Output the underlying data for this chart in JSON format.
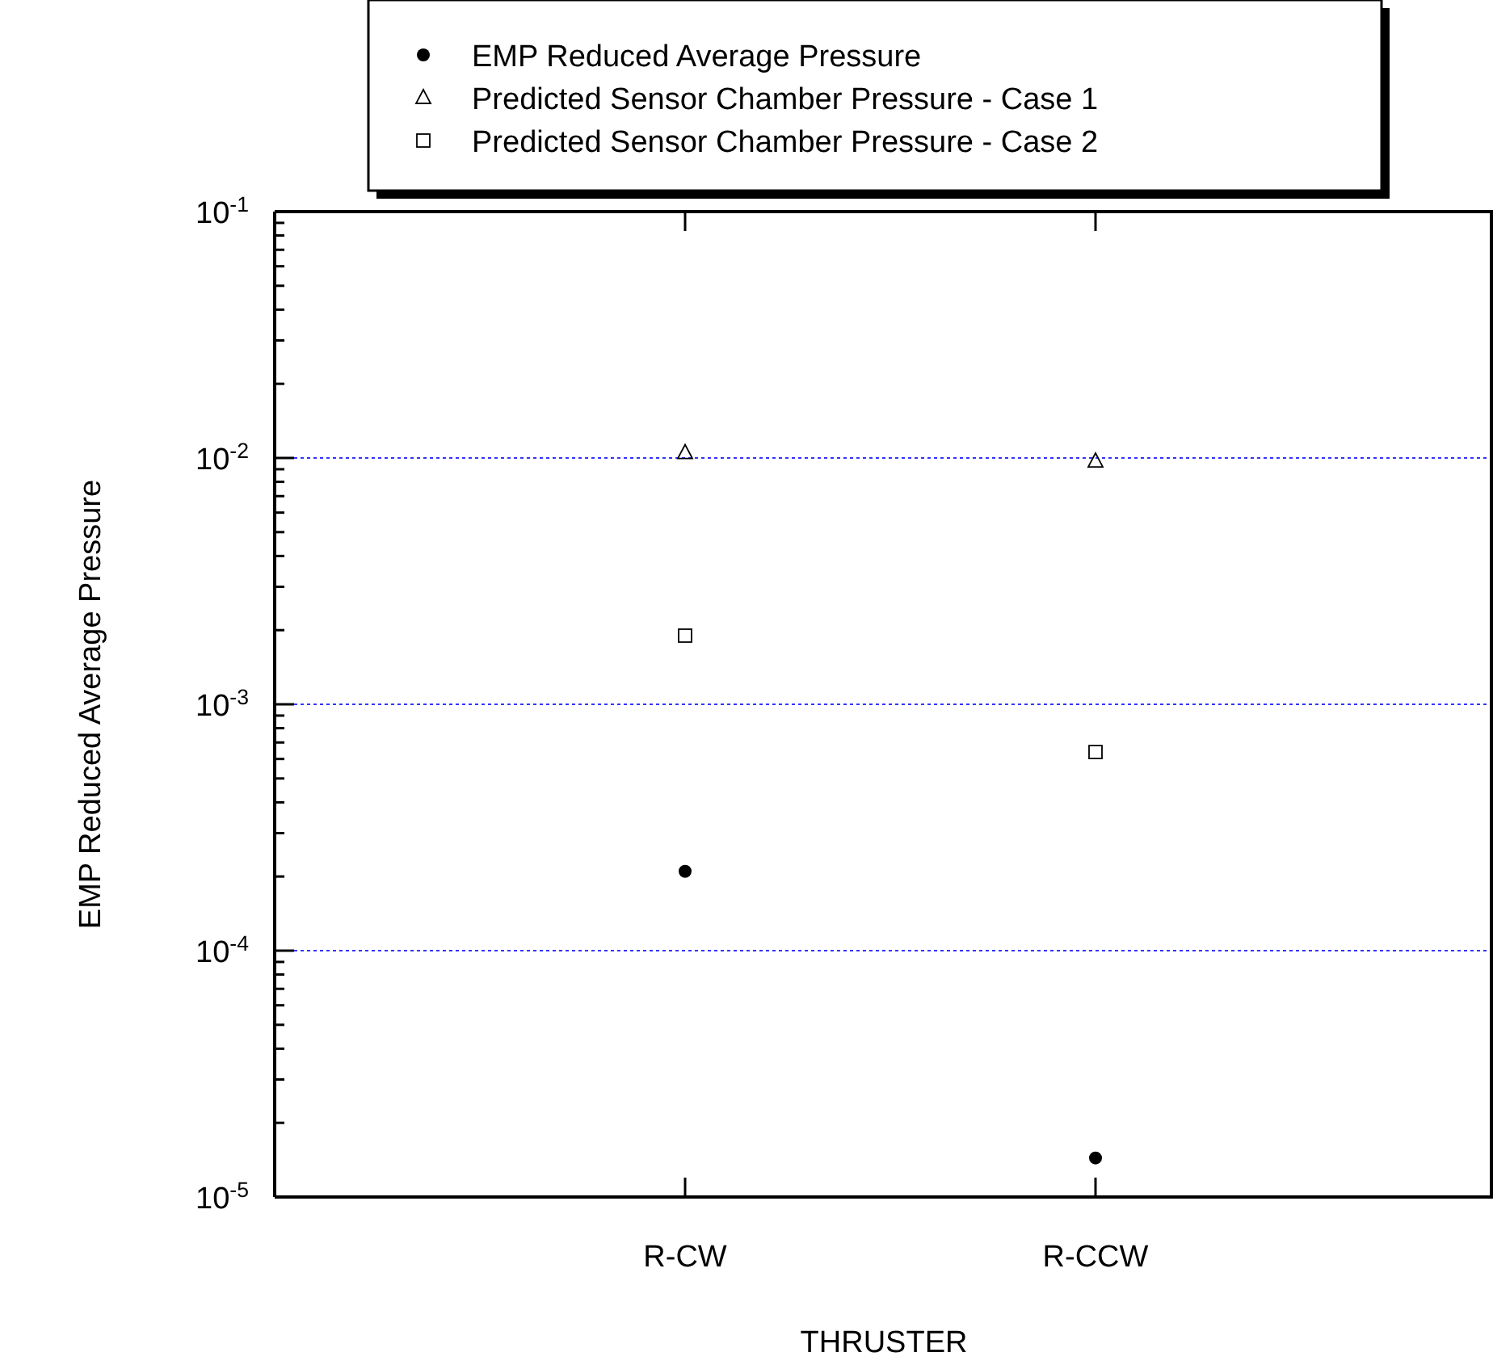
{
  "chart_data": {
    "type": "scatter",
    "xlabel": "THRUSTER",
    "ylabel": "EMP Reduced Average Pressure",
    "categories": [
      "R-CW",
      "R-CCW"
    ],
    "series": [
      {
        "name": "EMP Reduced Average Pressure",
        "color": "#000000",
        "marker": "circle",
        "values": [
          0.00021,
          1.44e-05
        ]
      },
      {
        "name": "Predicted Sensor Chamber Pressure - Case 1",
        "color": "#000000",
        "marker": "triangle",
        "values": [
          0.0105,
          0.0097
        ]
      },
      {
        "name": "Predicted Sensor Chamber Pressure  - Case 2",
        "color": "#000000",
        "marker": "square",
        "values": [
          0.0019,
          0.00064
        ]
      }
    ],
    "log": true,
    "ylim": [
      1e-05,
      0.1
    ],
    "yticks": [
      {
        "value": 1e-05,
        "label": "10$^{-5}$"
      },
      {
        "value": 2e-05,
        "label": null
      },
      {
        "value": 3e-05,
        "label": null
      },
      {
        "value": 4e-05,
        "label": null
      },
      {
        "value": 5e-05,
        "label": null
      },
      {
        "value": 6e-05,
        "label": null
      },
      {
        "value": 7e-05,
        "label": null
      },
      {
        "value": 8e-05,
        "label": null
      },
      {
        "value": 9e-05,
        "label": null
      },
      {
        "value": 0.0001,
        "label": "10$^{-4}$"
      },
      {
        "value": 0.0002,
        "label": null
      },
      {
        "value": 0.0003,
        "label": null
      },
      {
        "value": 0.0004,
        "label": null
      },
      {
        "value": 0.0005,
        "label": null
      },
      {
        "value": 0.0006,
        "label": null
      },
      {
        "value": 0.0007,
        "label": null
      },
      {
        "value": 0.0008,
        "label": null
      },
      {
        "value": 0.0009,
        "label": null
      },
      {
        "value": 0.001,
        "label": "10$^{-3}$"
      },
      {
        "value": 0.002,
        "label": null
      },
      {
        "value": 0.003,
        "label": null
      },
      {
        "value": 0.004,
        "label": null
      },
      {
        "value": 0.005,
        "label": null
      },
      {
        "value": 0.006,
        "label": null
      },
      {
        "value": 0.007,
        "label": null
      },
      {
        "value": 0.008,
        "label": null
      },
      {
        "value": 0.009,
        "label": null
      },
      {
        "value": 0.01,
        "label": "10$^{-2}$"
      },
      {
        "value": 0.02,
        "label": null
      },
      {
        "value": 0.03,
        "label": null
      },
      {
        "value": 0.04,
        "label": null
      },
      {
        "value": 0.05,
        "label": null
      },
      {
        "value": 0.06,
        "label": null
      },
      {
        "value": 0.07,
        "label": null
      },
      {
        "value": 0.08,
        "label": null
      },
      {
        "value": 0.09,
        "label": null
      },
      {
        "value": 0.1,
        "label": "10$^{-1}$"
      }
    ],
    "grid": "y",
    "legend": "top"
  }
}
